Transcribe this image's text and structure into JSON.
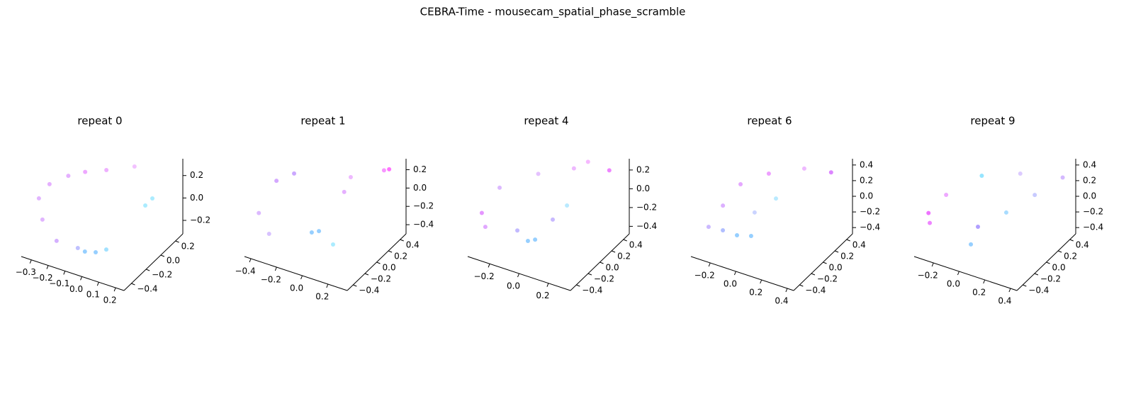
{
  "figure_title": "CEBRA-Time - mousecam_spatial_phase_scramble",
  "chart_data": [
    {
      "type": "scatter3d",
      "title": "repeat 0",
      "x": [
        -0.087,
        -0.023,
        0.04,
        -0.129,
        -0.255,
        -0.339,
        -0.36,
        -0.297,
        -0.36,
        -0.26,
        -0.134,
        0.033,
        0.097,
        0.139
      ],
      "y": [
        -0.26,
        -0.26,
        -0.26,
        -0.26,
        -0.26,
        -0.26,
        -0.26,
        -0.26,
        0.14,
        0.14,
        0.14,
        0.14,
        0.14,
        0.14
      ],
      "z": [
        -0.292,
        -0.266,
        -0.21,
        -0.281,
        -0.28,
        -0.132,
        0.047,
        0.205,
        -0.005,
        0.08,
        0.159,
        0.274,
        -0.042,
        0.042
      ],
      "colors": [
        "#3fa8ff",
        "#3fa8ff",
        "#55c8ff",
        "#8a8cff",
        "#b070ff",
        "#c878ff",
        "#c878ff",
        "#d070ff",
        "#d070ff",
        "#e060ff",
        "#e070ff",
        "#e890ff",
        "#66ddff",
        "#66ddff"
      ],
      "xlim": [
        -0.36,
        0.25
      ],
      "ylim": [
        -0.5,
        0.3
      ],
      "zlim": [
        -0.32,
        0.35
      ],
      "xticks": [
        {
          "value": -0.3,
          "label": "−0.3"
        },
        {
          "value": -0.2,
          "label": "−0.2"
        },
        {
          "value": -0.1,
          "label": "−0.1"
        },
        {
          "value": 0,
          "label": "0.0"
        },
        0.1,
        0.2
      ],
      "yticks": [
        {
          "value": -0.4,
          "label": "−0.4"
        },
        {
          "value": -0.2,
          "label": "−0.2"
        },
        {
          "value": 0,
          "label": "0.0"
        },
        0.2
      ],
      "zticks": [
        {
          "value": -0.2,
          "label": "−0.2"
        },
        {
          "value": 0,
          "label": "0.0"
        },
        0.2
      ]
    },
    {
      "type": "scatter3d",
      "title": "repeat 1",
      "x": [
        -0.43,
        -0.35,
        -0.018,
        0.038,
        0.148,
        -0.43,
        -0.43,
        0.011,
        -0.04,
        0.31,
        0.27
      ],
      "y": [
        -0.3,
        -0.3,
        -0.3,
        -0.3,
        -0.3,
        0,
        0.3,
        0.3,
        0.3,
        0.3,
        0.3
      ],
      "z": [
        -0.14,
        -0.33,
        -0.16,
        -0.12,
        -0.215,
        0.027,
        -0.08,
        0.085,
        -0.1,
        0.31,
        0.28
      ],
      "colors": [
        "#c080ff",
        "#b890ff",
        "#3fa8ff",
        "#3fa8ff",
        "#66ddff",
        "#b060ff",
        "#a060ff",
        "#e080ff",
        "#d070ff",
        "#ff00ff",
        "#f040ff"
      ],
      "xlim": [
        -0.45,
        0.35
      ],
      "ylim": [
        -0.5,
        0.5
      ],
      "zlim": [
        -0.5,
        0.32
      ],
      "xticks": [
        {
          "value": -0.4,
          "label": "−0.4"
        },
        {
          "value": -0.2,
          "label": "−0.2"
        },
        {
          "value": 0,
          "label": "0.0"
        },
        0.2
      ],
      "yticks": [
        {
          "value": -0.4,
          "label": "−0.4"
        },
        {
          "value": -0.2,
          "label": "−0.2"
        },
        {
          "value": 0,
          "label": "0.0"
        },
        0.2,
        0.4
      ],
      "zticks": [
        {
          "value": -0.4,
          "label": "−0.4"
        },
        {
          "value": -0.2,
          "label": "−0.2"
        },
        {
          "value": 0,
          "label": "0.0"
        },
        0.2
      ]
    },
    {
      "type": "scatter3d",
      "title": "repeat 4",
      "x": [
        -0.334,
        -0.31,
        -0.02,
        0.029,
        -0.092,
        -0.333,
        0.126,
        0.029,
        -0.19,
        0.053,
        0.294,
        0.149
      ],
      "y": [
        -0.3,
        -0.3,
        -0.3,
        -0.3,
        -0.3,
        0,
        0,
        0,
        0.3,
        0.3,
        0.3,
        0.3
      ],
      "z": [
        -0.128,
        -0.264,
        -0.264,
        -0.224,
        -0.19,
        -0.04,
        0.008,
        -0.192,
        0,
        0.184,
        0.288,
        0.304
      ],
      "colors": [
        "#d040ff",
        "#c860ff",
        "#3fa8ff",
        "#3fa8ff",
        "#9080ff",
        "#c080ff",
        "#80d8ff",
        "#9a80ff",
        "#d090ff",
        "#e080ff",
        "#e020ff",
        "#ee80ff"
      ],
      "xlim": [
        -0.35,
        0.35
      ],
      "ylim": [
        -0.5,
        0.5
      ],
      "zlim": [
        -0.48,
        0.32
      ],
      "xticks": [
        {
          "value": -0.2,
          "label": "−0.2"
        },
        {
          "value": 0,
          "label": "0.0"
        },
        0.2
      ],
      "yticks": [
        {
          "value": -0.4,
          "label": "−0.4"
        },
        {
          "value": -0.2,
          "label": "−0.2"
        },
        {
          "value": 0,
          "label": "0.0"
        },
        0.2,
        0.4
      ],
      "zticks": [
        {
          "value": -0.4,
          "label": "−0.4"
        },
        {
          "value": -0.2,
          "label": "−0.2"
        },
        {
          "value": 0,
          "label": "0.0"
        },
        0.2
      ]
    },
    {
      "type": "scatter3d",
      "title": "repeat 6",
      "x": [
        -0.304,
        -0.083,
        0.027,
        -0.193,
        -0.33,
        0.083,
        -0.083,
        -0.33,
        -0.11,
        0.166,
        0.375
      ],
      "y": [
        -0.3,
        -0.3,
        -0.3,
        -0.3,
        0,
        0,
        0,
        0.3,
        0.3,
        0.3,
        0.3
      ],
      "z": [
        -0.221,
        -0.208,
        -0.157,
        -0.204,
        -0.18,
        0.134,
        -0.134,
        -0.125,
        0.13,
        0.345,
        0.41
      ],
      "colors": [
        "#a080ff",
        "#3fa8ff",
        "#3fa8ff",
        "#7088ff",
        "#c070ff",
        "#80d8ff",
        "#a0b0ff",
        "#d060ff",
        "#e050ff",
        "#e080ff",
        "#c020ff"
      ],
      "xlim": [
        -0.35,
        0.45
      ],
      "ylim": [
        -0.5,
        0.5
      ],
      "zlim": [
        -0.48,
        0.48
      ],
      "xticks": [
        {
          "value": -0.2,
          "label": "−0.2"
        },
        {
          "value": 0,
          "label": "0.0"
        },
        0.2,
        0.4
      ],
      "yticks": [
        {
          "value": -0.4,
          "label": "−0.4"
        },
        {
          "value": -0.2,
          "label": "−0.2"
        },
        {
          "value": 0,
          "label": "0.0"
        },
        0.2,
        0.4
      ],
      "zticks": [
        {
          "value": -0.4,
          "label": "−0.4"
        },
        {
          "value": -0.2,
          "label": "−0.2"
        },
        {
          "value": 0,
          "label": "0.0"
        },
        0.2,
        0.4
      ]
    },
    {
      "type": "scatter3d",
      "title": "repeat 9",
      "x": [
        -0.33,
        -0.32,
        0,
        0.055,
        -0.33,
        0.138,
        0.36,
        -0.19,
        0.44,
        0.11
      ],
      "y": [
        -0.3,
        -0.3,
        -0.3,
        -0.3,
        0,
        0,
        0,
        0.3,
        0.3,
        0.3
      ],
      "z": [
        -0.058,
        -0.18,
        -0.28,
        -0.024,
        -0.043,
        -0.015,
        0.33,
        0.06,
        0.38,
        0.25
      ],
      "colors": [
        "#e000ff",
        "#e020ff",
        "#3fa8ff",
        "#7050ff",
        "#e060ff",
        "#60c0ff",
        "#9aa0ff",
        "#40d0ff",
        "#b080ff",
        "#c0a0ff"
      ],
      "xlim": [
        -0.35,
        0.45
      ],
      "ylim": [
        -0.5,
        0.5
      ],
      "zlim": [
        -0.48,
        0.48
      ],
      "xticks": [
        {
          "value": -0.2,
          "label": "−0.2"
        },
        {
          "value": 0,
          "label": "0.0"
        },
        0.2,
        0.4
      ],
      "yticks": [
        {
          "value": -0.4,
          "label": "−0.4"
        },
        {
          "value": -0.2,
          "label": "−0.2"
        },
        {
          "value": 0,
          "label": "0.0"
        },
        0.2,
        0.4
      ],
      "zticks": [
        {
          "value": -0.4,
          "label": "−0.4"
        },
        {
          "value": -0.2,
          "label": "−0.2"
        },
        {
          "value": 0,
          "label": "0.0"
        },
        0.2,
        0.4
      ]
    }
  ]
}
